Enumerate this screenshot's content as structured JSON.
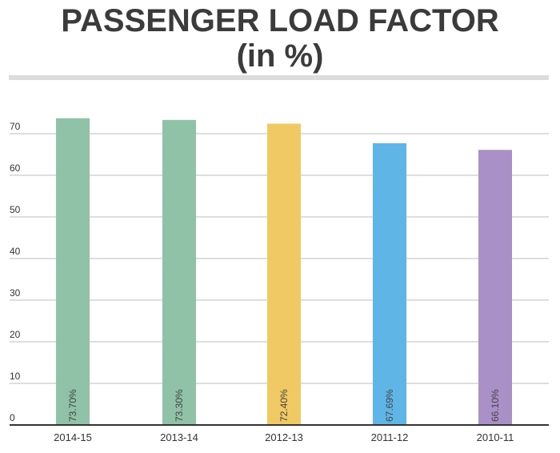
{
  "chart_data": {
    "type": "bar",
    "title_line1": "PASSENGER LOAD FACTOR",
    "title_line2": "(in %)",
    "categories": [
      "2014-15",
      "2013-14",
      "2012-13",
      "2011-12",
      "2010-11"
    ],
    "values": [
      73.7,
      73.3,
      72.4,
      67.69,
      66.1
    ],
    "data_labels": [
      "73.70%",
      "73.30%",
      "72.40%",
      "67.69%",
      "66.10%"
    ],
    "colors": [
      "#8fc2a6",
      "#8fc2a6",
      "#f0c965",
      "#5fb6e6",
      "#a990c7"
    ],
    "ylim": [
      0,
      80
    ],
    "yticks": [
      0,
      10,
      20,
      30,
      40,
      50,
      60,
      70
    ],
    "grid": true,
    "legend": "none"
  }
}
